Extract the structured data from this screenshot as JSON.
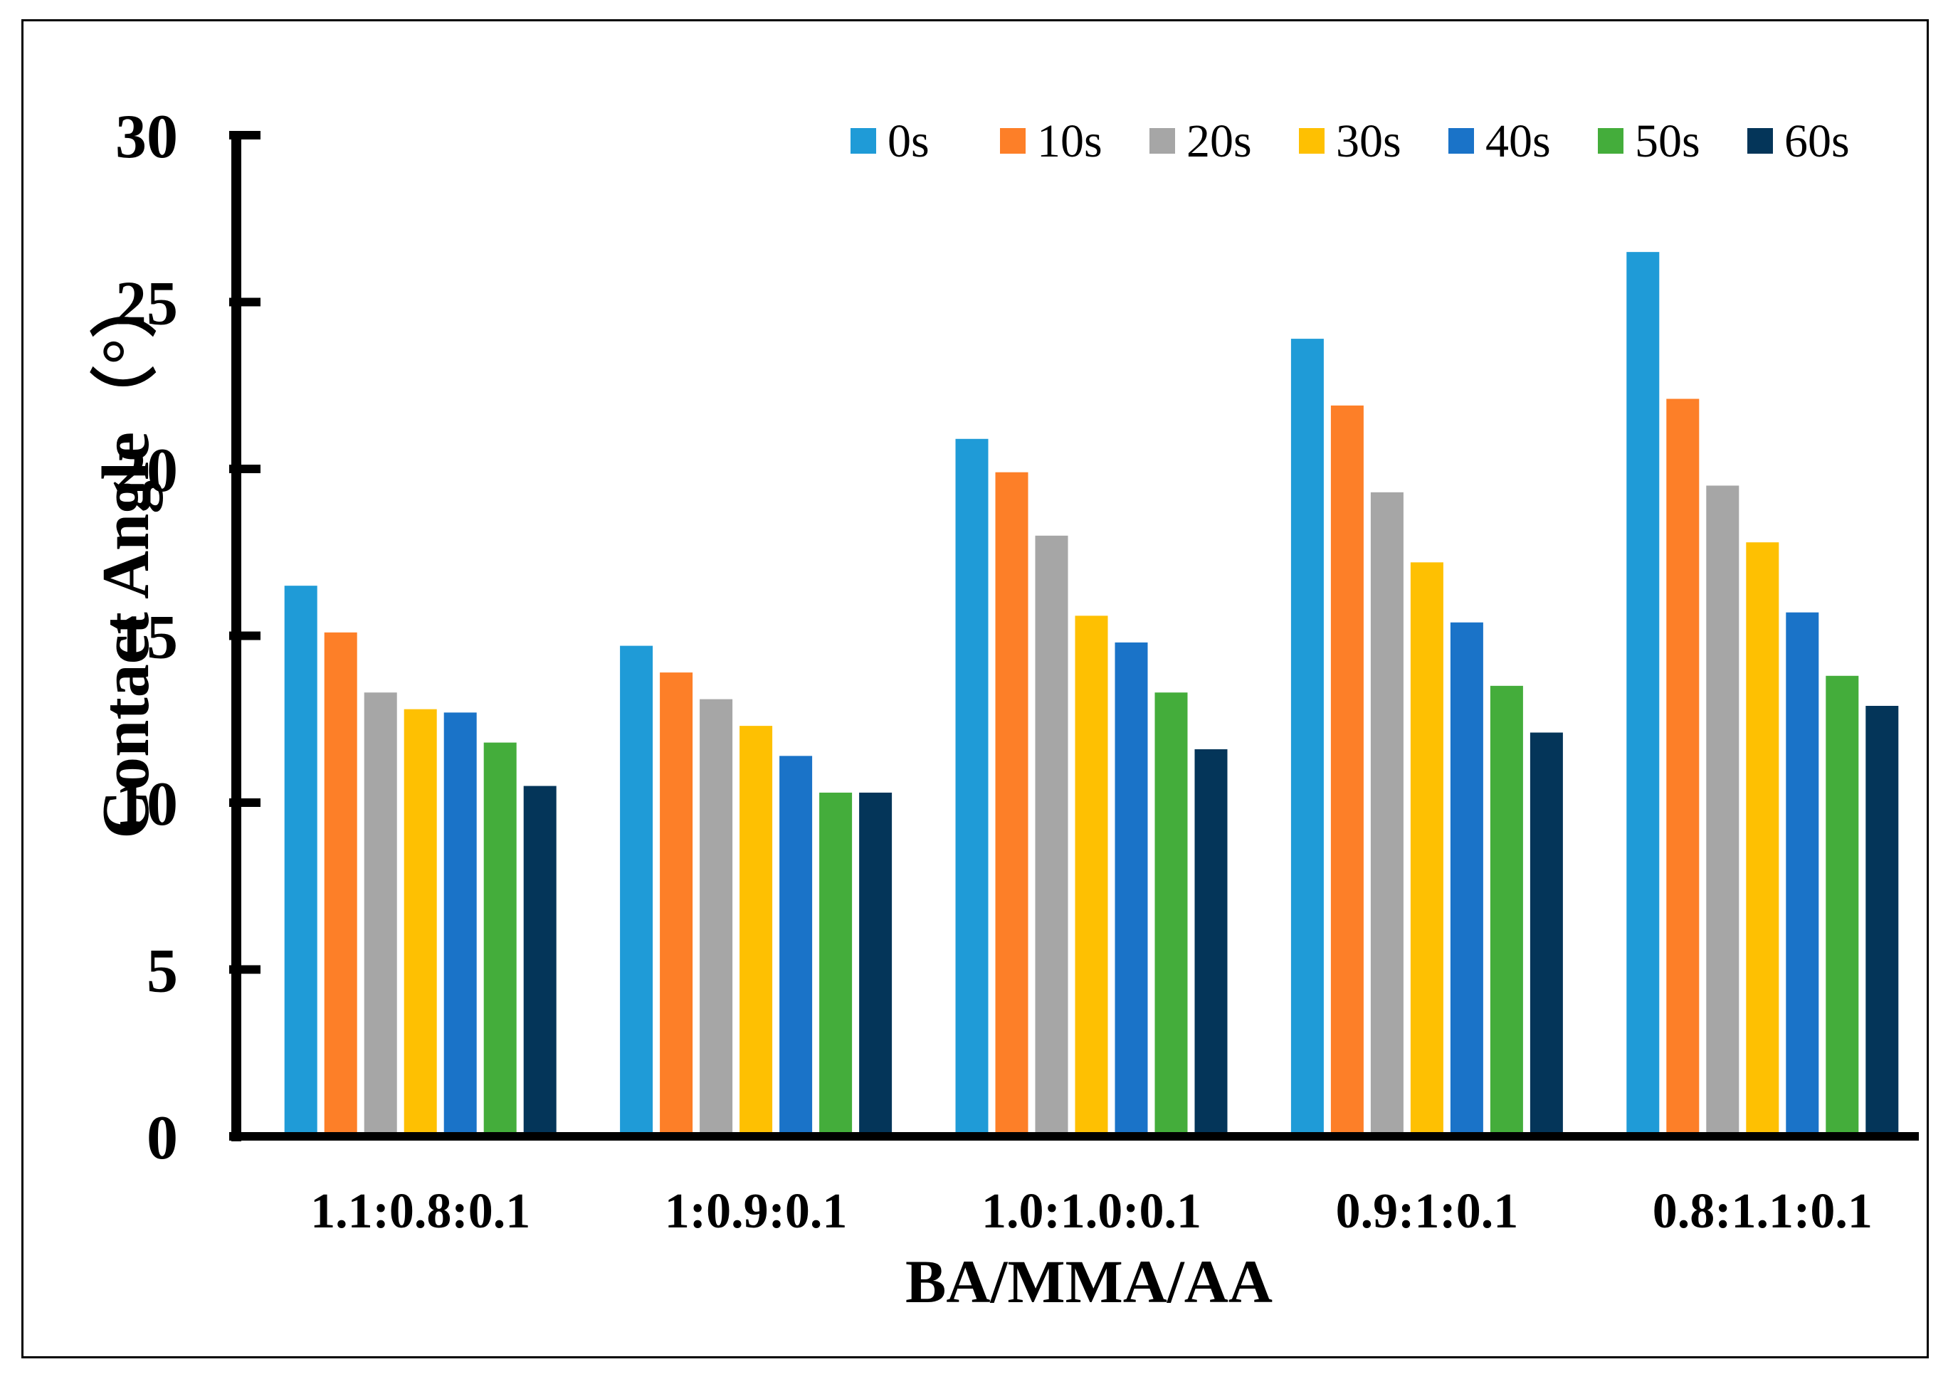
{
  "chart_data": {
    "type": "bar",
    "title": "",
    "xlabel": "BA/MMA/AA",
    "ylabel": "Contact Angle（°）",
    "ylim": [
      0,
      30
    ],
    "yticks": [
      0,
      5,
      10,
      15,
      20,
      25,
      30
    ],
    "grid": false,
    "legend_position": "top-right",
    "categories": [
      "1.1:0.8:0.1",
      "1:0.9:0.1",
      "1.0:1.0:0.1",
      "0.9:1:0.1",
      "0.8:1.1:0.1"
    ],
    "series": [
      {
        "name": "0s",
        "color": "#1f9bd7",
        "values": [
          16.5,
          14.7,
          20.9,
          23.9,
          26.5
        ]
      },
      {
        "name": "10s",
        "color": "#fd7f28",
        "values": [
          15.1,
          13.9,
          19.9,
          21.9,
          22.1
        ]
      },
      {
        "name": "20s",
        "color": "#a6a6a6",
        "values": [
          13.3,
          13.1,
          18.0,
          19.3,
          19.5
        ]
      },
      {
        "name": "30s",
        "color": "#fec002",
        "values": [
          12.8,
          12.3,
          15.6,
          17.2,
          17.8
        ]
      },
      {
        "name": "40s",
        "color": "#1a73c8",
        "values": [
          12.7,
          11.4,
          14.8,
          15.4,
          15.7
        ]
      },
      {
        "name": "50s",
        "color": "#44ad3b",
        "values": [
          11.8,
          10.3,
          13.3,
          13.5,
          13.8
        ]
      },
      {
        "name": "60s",
        "color": "#043559",
        "values": [
          10.5,
          10.3,
          11.6,
          12.1,
          12.9
        ]
      }
    ]
  }
}
